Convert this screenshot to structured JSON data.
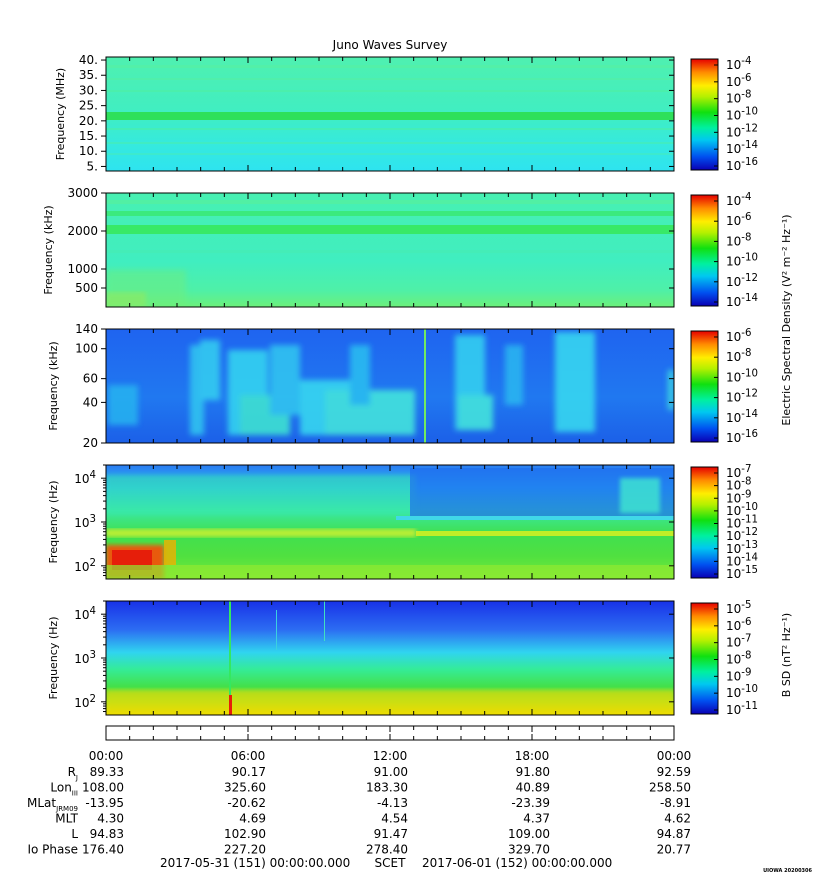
{
  "title": "Juno Waves Survey",
  "colors": {
    "background": "#4df2b8",
    "cyan": "#33e6f2",
    "blue": "#1f6ff2",
    "green": "#2ee64a",
    "yellow": "#f5e600",
    "red": "#e61e0a"
  },
  "chart_data": [
    {
      "type": "heatmap",
      "name": "panel-1",
      "ylabel": "Frequency (MHz)",
      "yscale": "linear",
      "ylim": [
        3.5,
        41
      ],
      "yticks": [
        {
          "v": 40,
          "label": "40."
        },
        {
          "v": 35,
          "label": "35."
        },
        {
          "v": 30,
          "label": "30."
        },
        {
          "v": 25,
          "label": "25."
        },
        {
          "v": 20,
          "label": "20."
        },
        {
          "v": 15,
          "label": "15."
        },
        {
          "v": 10,
          "label": "10."
        },
        {
          "v": 5,
          "label": "5."
        }
      ],
      "colorbar": {
        "label": "",
        "ticks": [
          {
            "base": "10",
            "exp": "-4"
          },
          {
            "base": "10",
            "exp": "-6"
          },
          {
            "base": "10",
            "exp": "-8"
          },
          {
            "base": "10",
            "exp": "-10"
          },
          {
            "base": "10",
            "exp": "-12"
          },
          {
            "base": "10",
            "exp": "-14"
          },
          {
            "base": "10",
            "exp": "-16"
          }
        ]
      }
    },
    {
      "type": "heatmap",
      "name": "panel-2",
      "ylabel": "Frequency (kHz)",
      "yscale": "linear",
      "ylim": [
        0,
        3000
      ],
      "yticks": [
        {
          "v": 3000,
          "label": "3000"
        },
        {
          "v": 2000,
          "label": "2000"
        },
        {
          "v": 1000,
          "label": "1000"
        },
        {
          "v": 500,
          "label": "500"
        }
      ],
      "colorbar": {
        "label": "Electric Spectral Density (V² m⁻² Hz⁻¹)",
        "ticks": [
          {
            "base": "10",
            "exp": "-4"
          },
          {
            "base": "10",
            "exp": "-6"
          },
          {
            "base": "10",
            "exp": "-8"
          },
          {
            "base": "10",
            "exp": "-10"
          },
          {
            "base": "10",
            "exp": "-12"
          },
          {
            "base": "10",
            "exp": "-14"
          }
        ]
      }
    },
    {
      "type": "heatmap",
      "name": "panel-3",
      "ylabel": "Frequency (kHz)",
      "yscale": "log",
      "ylim": [
        20,
        140
      ],
      "yticks": [
        {
          "v": 140,
          "label": "140"
        },
        {
          "v": 100,
          "label": "100"
        },
        {
          "v": 60,
          "label": "60"
        },
        {
          "v": 40,
          "label": "40"
        },
        {
          "v": 20,
          "label": "20"
        }
      ],
      "colorbar": {
        "label": "",
        "ticks": [
          {
            "base": "10",
            "exp": "-6"
          },
          {
            "base": "10",
            "exp": "-8"
          },
          {
            "base": "10",
            "exp": "-10"
          },
          {
            "base": "10",
            "exp": "-12"
          },
          {
            "base": "10",
            "exp": "-14"
          },
          {
            "base": "10",
            "exp": "-16"
          }
        ]
      }
    },
    {
      "type": "heatmap",
      "name": "panel-4",
      "ylabel": "Frequency (Hz)",
      "yscale": "log",
      "ylim": [
        50,
        20000
      ],
      "yticks": [
        {
          "v": 10000,
          "base": "10",
          "exp": "4"
        },
        {
          "v": 1000,
          "base": "10",
          "exp": "3"
        },
        {
          "v": 100,
          "base": "10",
          "exp": "2"
        }
      ],
      "colorbar": {
        "label": "",
        "ticks": [
          {
            "base": "10",
            "exp": "-7"
          },
          {
            "base": "10",
            "exp": "-8"
          },
          {
            "base": "10",
            "exp": "-9"
          },
          {
            "base": "10",
            "exp": "-10"
          },
          {
            "base": "10",
            "exp": "-11"
          },
          {
            "base": "10",
            "exp": "-12"
          },
          {
            "base": "10",
            "exp": "-13"
          },
          {
            "base": "10",
            "exp": "-14"
          },
          {
            "base": "10",
            "exp": "-15"
          }
        ]
      }
    },
    {
      "type": "heatmap",
      "name": "panel-5",
      "ylabel": "Frequency (Hz)",
      "yscale": "log",
      "ylim": [
        50,
        20000
      ],
      "yticks": [
        {
          "v": 10000,
          "base": "10",
          "exp": "4"
        },
        {
          "v": 1000,
          "base": "10",
          "exp": "3"
        },
        {
          "v": 100,
          "base": "10",
          "exp": "2"
        }
      ],
      "colorbar": {
        "label": "B SD (nT² Hz⁻¹)",
        "ticks": [
          {
            "base": "10",
            "exp": "-5"
          },
          {
            "base": "10",
            "exp": "-6"
          },
          {
            "base": "10",
            "exp": "-7"
          },
          {
            "base": "10",
            "exp": "-8"
          },
          {
            "base": "10",
            "exp": "-9"
          },
          {
            "base": "10",
            "exp": "-10"
          },
          {
            "base": "10",
            "exp": "-11"
          }
        ]
      }
    }
  ],
  "ephemeris": {
    "times": [
      "00:00",
      "06:00",
      "12:00",
      "18:00",
      "00:00"
    ],
    "rows": [
      {
        "label": "R",
        "sub": "J",
        "values": [
          "89.33",
          "90.17",
          "91.00",
          "91.80",
          "92.59"
        ]
      },
      {
        "label": "Lon",
        "sub": "III",
        "values": [
          "108.00",
          "325.60",
          "183.30",
          "40.89",
          "258.50"
        ]
      },
      {
        "label": "MLat",
        "sub": "JRM09",
        "values": [
          "-13.95",
          "-20.62",
          "-4.13",
          "-23.39",
          "-8.91"
        ]
      },
      {
        "label": "MLT",
        "sub": "",
        "values": [
          "4.30",
          "4.69",
          "4.54",
          "4.37",
          "4.62"
        ]
      },
      {
        "label": "L",
        "sub": "",
        "values": [
          "94.83",
          "102.90",
          "91.47",
          "109.00",
          "94.87"
        ]
      },
      {
        "label": "Io Phase",
        "sub": "",
        "values": [
          "176.40",
          "227.20",
          "278.40",
          "329.70",
          "20.77"
        ]
      }
    ],
    "footer": {
      "start": "2017-05-31 (151) 00:00:00.000",
      "scet": "SCET",
      "end": "2017-06-01 (152) 00:00:00.000"
    }
  },
  "stamp": "UIOWA 20200306"
}
